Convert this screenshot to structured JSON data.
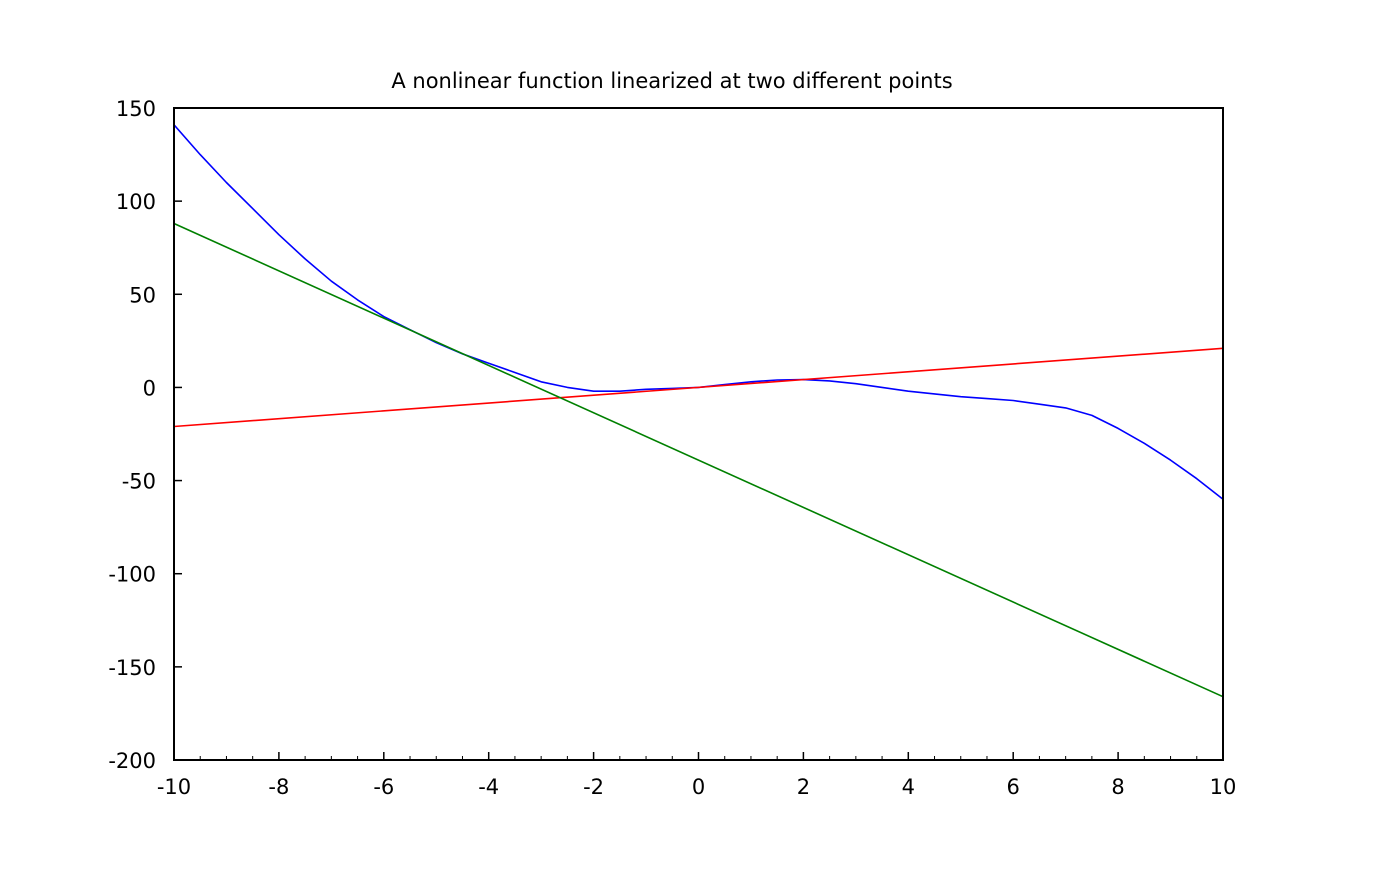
{
  "chart_data": {
    "type": "line",
    "title": "A nonlinear function linearized at two different points",
    "xlabel": "",
    "ylabel": "",
    "xlim": [
      -10,
      10
    ],
    "ylim": [
      -200,
      150
    ],
    "x_ticks": [
      -10,
      -8,
      -6,
      -4,
      -2,
      0,
      2,
      4,
      6,
      8,
      10
    ],
    "x_tick_labels": [
      "-10",
      "-8",
      "-6",
      "-4",
      "-2",
      "0",
      "2",
      "4",
      "6",
      "8",
      "10"
    ],
    "y_ticks": [
      150,
      100,
      50,
      0,
      -50,
      -100,
      -150,
      -200
    ],
    "y_tick_labels": [
      "150",
      "100",
      "50",
      "0",
      "-50",
      "-100",
      "-150",
      "-200"
    ],
    "grid": false,
    "legend": "none",
    "series": [
      {
        "color": "#0000ff",
        "x": [
          -10,
          -9.5,
          -9,
          -8.5,
          -8,
          -7.5,
          -7,
          -6.5,
          -6,
          -5.5,
          -5,
          -4.5,
          -4,
          -3.5,
          -3,
          -2.5,
          -2,
          -1.5,
          -1,
          -0.5,
          0,
          0.5,
          1,
          1.5,
          2,
          2.5,
          3,
          3.5,
          4,
          4.5,
          5,
          5.5,
          6,
          6.5,
          7,
          7.5,
          8,
          8.5,
          9,
          9.5,
          10
        ],
        "values": [
          141,
          125,
          110,
          96,
          82,
          69,
          57,
          47,
          38,
          31,
          24,
          18,
          13,
          8,
          3,
          0,
          -2,
          -2,
          -1,
          -0.5,
          0,
          1.5,
          3,
          4,
          4.2,
          3.5,
          2,
          0,
          -2,
          -3.5,
          -5,
          -6,
          -7,
          -9,
          -11,
          -15,
          -22,
          -30,
          -39,
          -49,
          -60
        ]
      },
      {
        "color": "#ff0000",
        "x": [
          -10,
          10
        ],
        "values": [
          -21,
          21
        ]
      },
      {
        "color": "#008000",
        "x": [
          -10,
          10
        ],
        "values": [
          88,
          -166
        ]
      }
    ]
  }
}
